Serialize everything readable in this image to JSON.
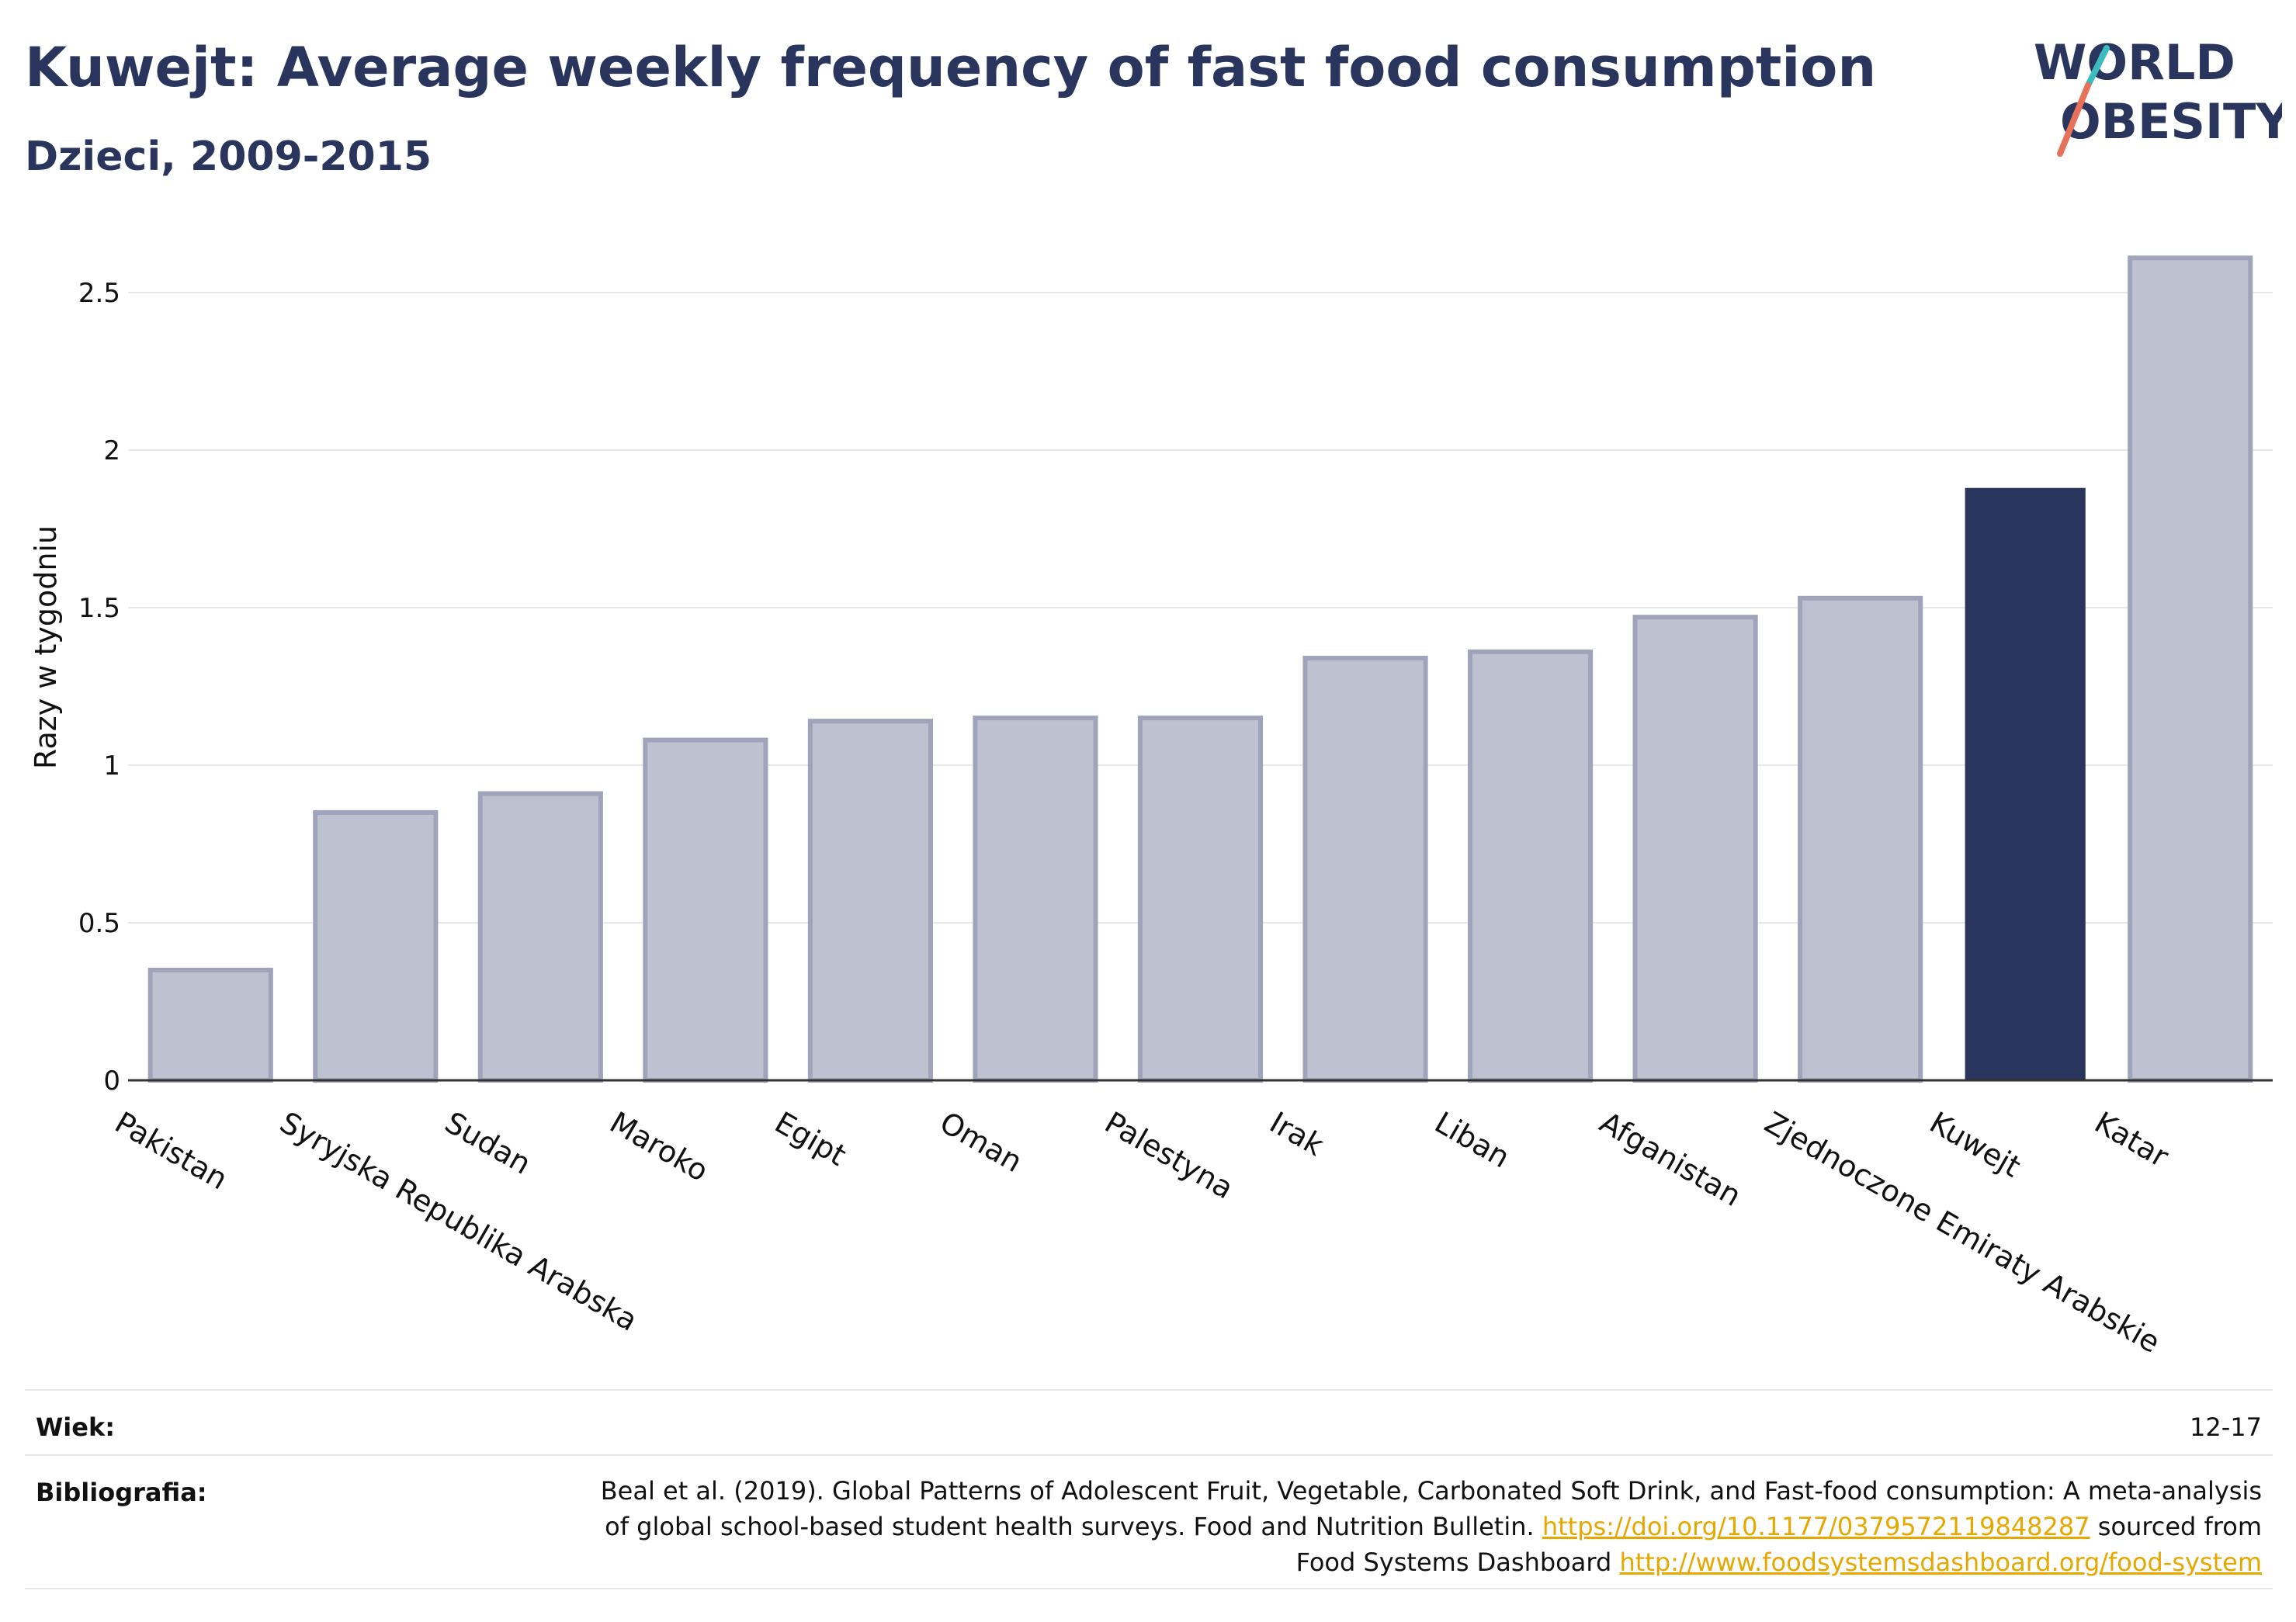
{
  "header": {
    "title": "Kuwejt: Average weekly frequency of fast food consumption",
    "subtitle": "Dzieci, 2009-2015"
  },
  "logo": {
    "line1": "WORLD",
    "line2": "OBESITY"
  },
  "chart_data": {
    "type": "bar",
    "ylabel": "Razy w tygodniu",
    "xlabel": "",
    "ylim": [
      0,
      2.6
    ],
    "yticks": [
      0,
      0.5,
      1,
      1.5,
      2,
      2.5
    ],
    "ytick_labels": [
      "0",
      "0.5",
      "1",
      "1.5",
      "2",
      "2.5"
    ],
    "grid": true,
    "highlight": "Kuwejt",
    "categories": [
      "Pakistan",
      "Syryjska Republika Arabska",
      "Sudan",
      "Maroko",
      "Egipt",
      "Oman",
      "Palestyna",
      "Irak",
      "Liban",
      "Afganistan",
      "Zjednoczone Emiraty Arabskie",
      "Kuwejt",
      "Katar"
    ],
    "values": [
      0.35,
      0.85,
      0.91,
      1.08,
      1.14,
      1.15,
      1.15,
      1.34,
      1.36,
      1.47,
      1.53,
      1.88,
      2.61
    ],
    "colors": {
      "default_fill": "#bec1cf",
      "default_stroke": "#9fa4ba",
      "highlight_fill": "#2a355d"
    }
  },
  "footer": {
    "age_label": "Wiek:",
    "age_value": "12-17",
    "bib_label": "Bibliografia:",
    "bib_text1": "Beal et al. (2019). Global Patterns of Adolescent Fruit, Vegetable, Carbonated Soft Drink, and Fast-food consumption: A meta-analysis of global school-based student health surveys. Food and Nutrition Bulletin. ",
    "bib_link1": "https://doi.org/10.1177/0379572119848287",
    "bib_text2": " sourced from Food Systems Dashboard ",
    "bib_link2": "http://www.foodsystemsdashboard.org/food-system"
  }
}
